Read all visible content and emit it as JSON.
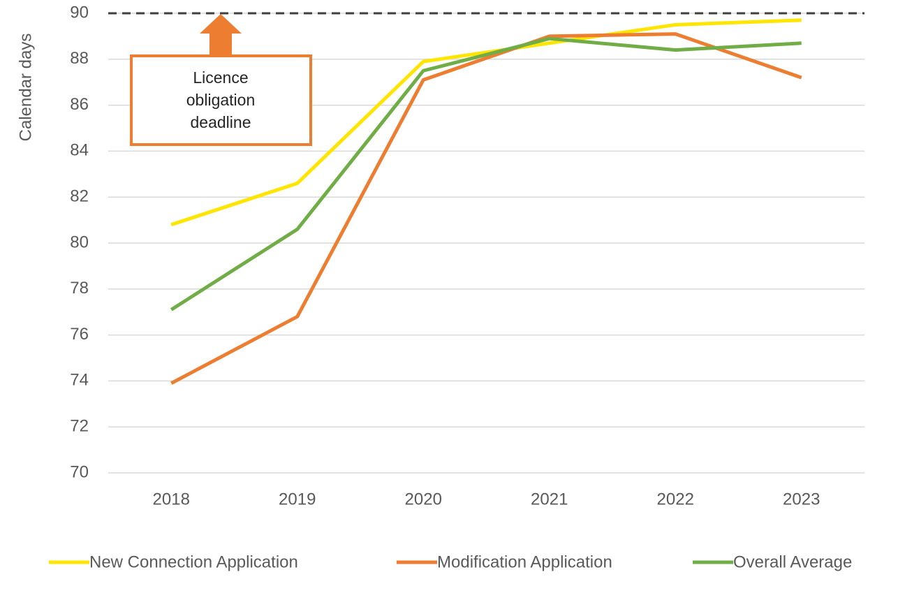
{
  "chart_data": {
    "type": "line",
    "y_label": "Calendar days",
    "categories": [
      "2018",
      "2019",
      "2020",
      "2021",
      "2022",
      "2023"
    ],
    "series": [
      {
        "name": "New Connection Application",
        "color": "#ffe500",
        "values": [
          80.8,
          82.6,
          87.9,
          88.7,
          89.5,
          89.7
        ]
      },
      {
        "name": "Modification Application",
        "color": "#ed7d31",
        "values": [
          73.9,
          76.8,
          87.1,
          89.0,
          89.1,
          87.2
        ]
      },
      {
        "name": "Overall Average",
        "color": "#70ad47",
        "values": [
          77.1,
          80.6,
          87.5,
          88.9,
          88.4,
          88.7
        ]
      }
    ],
    "ylim": [
      70,
      90
    ],
    "yticks": [
      70,
      72,
      74,
      76,
      78,
      80,
      82,
      84,
      86,
      88,
      90
    ],
    "grid": true,
    "reference_line": {
      "value": 90,
      "color": "#404040"
    },
    "annotation": {
      "lines": [
        "Licence",
        "obligation",
        "deadline"
      ],
      "color": "#ed7d31"
    },
    "legend": "bottom"
  }
}
